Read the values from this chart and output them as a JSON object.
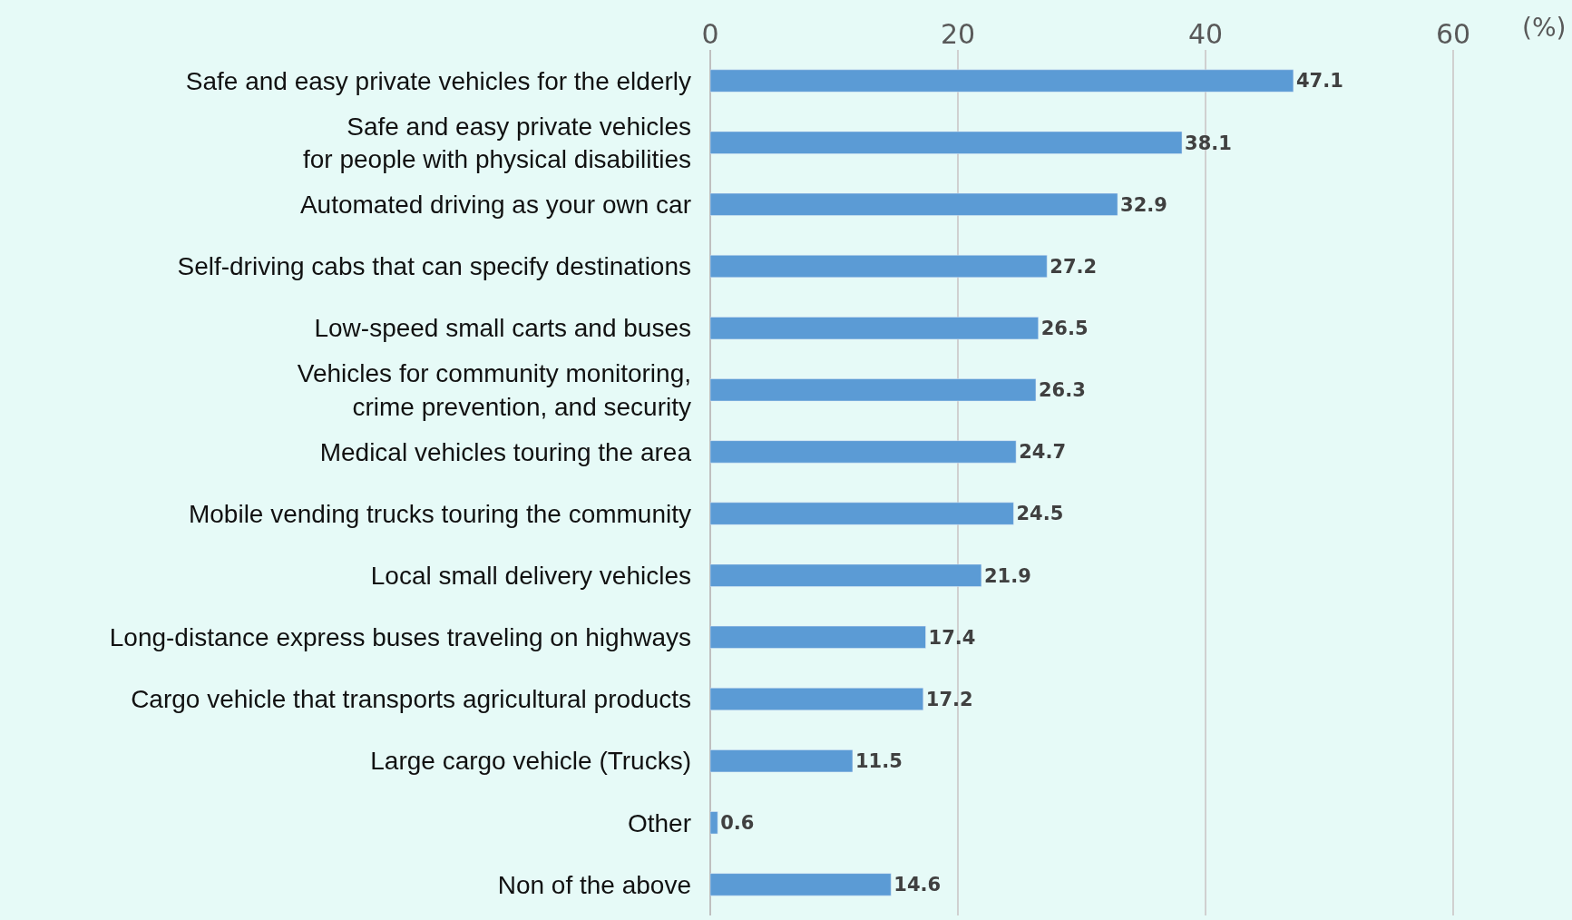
{
  "chart_data": {
    "type": "bar",
    "orientation": "horizontal",
    "xlabel": "(%)",
    "categories": [
      "Safe and easy private vehicles for the elderly",
      "Safe and easy private vehicles\nfor people with physical disabilities",
      "Automated driving as your own car",
      "Self-driving cabs that can specify destinations",
      "Low-speed small carts and buses",
      "Vehicles for community monitoring,\ncrime prevention, and security",
      "Medical vehicles touring the area",
      "Mobile vending trucks touring the community",
      "Local small delivery vehicles",
      "Long-distance express buses traveling on highways",
      "Cargo vehicle that transports agricultural products",
      "Large cargo vehicle (Trucks)",
      "Other",
      "Non of the above"
    ],
    "values": [
      47.1,
      38.1,
      32.9,
      27.2,
      26.5,
      26.3,
      24.7,
      24.5,
      21.9,
      17.4,
      17.2,
      11.5,
      0.6,
      14.6
    ],
    "color": "#5b9bd5",
    "xlim": [
      0,
      69.6
    ],
    "xticks": [
      0,
      20,
      40,
      60
    ],
    "grid": "x",
    "data_labels": true,
    "legend": false
  }
}
